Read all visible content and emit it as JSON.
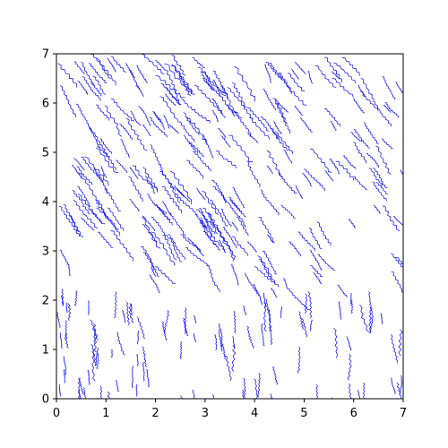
{
  "chart_data": {
    "type": "line",
    "title": "",
    "xlabel": "",
    "ylabel": "",
    "xlim": [
      0,
      7
    ],
    "ylim": [
      0,
      7
    ],
    "grid": false,
    "legend": "none",
    "x_ticks": [
      "0",
      "1",
      "2",
      "3",
      "4",
      "5",
      "6",
      "7"
    ],
    "y_ticks": [
      "0",
      "1",
      "2",
      "3",
      "4",
      "5",
      "6",
      "7"
    ],
    "series_color": "#0000ff",
    "streamline_seed": 20240517,
    "region_streak_counts": {
      "upper_left_dense": 150,
      "upper_right": 65,
      "center_band": 55,
      "lower_vertical": 95,
      "lower_left_edge": 12
    },
    "flow_directions_deg": {
      "upper": -55,
      "lower": -85
    }
  }
}
